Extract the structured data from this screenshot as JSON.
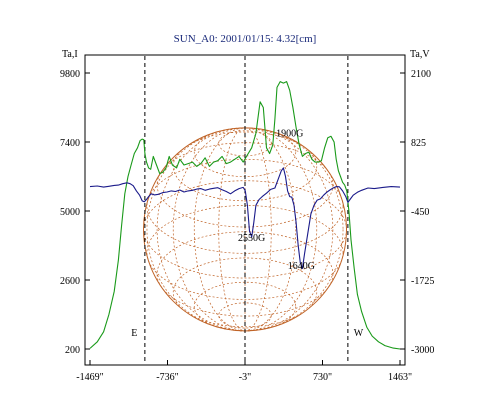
{
  "chart_data": {
    "type": "line",
    "title": "SUN_A0: 2001/01/15: 4.32[cm]",
    "ylabel_left": "Ta,I",
    "ylabel_right": "Ta,V",
    "xlim": [
      -1469,
      1463
    ],
    "ylim_left": [
      200,
      9800
    ],
    "ylim_right": [
      -3000,
      2100
    ],
    "x_ticks": [
      "-1469\"",
      "-736\"",
      "-3\"",
      "730\"",
      "1463\""
    ],
    "x_tick_values": [
      -1469,
      -736,
      -3,
      730,
      1463
    ],
    "y_left_ticks": [
      "9800",
      "7400",
      "5000",
      "2600",
      "200"
    ],
    "y_left_tick_values": [
      9800,
      7400,
      5000,
      2600,
      200
    ],
    "y_right_ticks": [
      "2100",
      "825",
      "-450",
      "-1725",
      "-3000"
    ],
    "y_right_tick_values": [
      2100,
      825,
      -450,
      -1725,
      -3000
    ],
    "vertical_lines": [
      -950,
      -3,
      970
    ],
    "limb_labels": [
      {
        "text": "E",
        "x": -1050,
        "y_left": 650
      },
      {
        "text": "W",
        "x": 1070,
        "y_left": 650
      }
    ],
    "annotations": [
      {
        "text": "1900G",
        "x": 420,
        "y_left": 7600
      },
      {
        "text": "2550G",
        "x": 60,
        "y_left": 3960
      },
      {
        "text": "1640G",
        "x": 530,
        "y_left": 2990
      }
    ],
    "disk": {
      "center_x": -3,
      "radius": 960,
      "center_y_left": 4360
    },
    "grid": false,
    "colors": {
      "stokes_i": "#1a9a1a",
      "stokes_v": "#1a1a8a",
      "disk": "#c06428",
      "title": "#1a2a7a"
    },
    "series": [
      {
        "axis": "left",
        "color": "#1a9a1a",
        "x": [
          -1469,
          -1400,
          -1340,
          -1290,
          -1240,
          -1200,
          -1170,
          -1140,
          -1110,
          -1080,
          -1050,
          -1020,
          -995,
          -975,
          -960,
          -950,
          -935,
          -915,
          -895,
          -870,
          -840,
          -810,
          -780,
          -750,
          -720,
          -690,
          -650,
          -620,
          -580,
          -540,
          -500,
          -460,
          -420,
          -380,
          -340,
          -300,
          -260,
          -220,
          -180,
          -140,
          -100,
          -60,
          -20,
          20,
          60,
          100,
          140,
          170,
          200,
          230,
          260,
          280,
          300,
          330,
          360,
          390,
          420,
          450,
          480,
          510,
          540,
          570,
          600,
          630,
          660,
          690,
          720,
          750,
          780,
          810,
          840,
          860,
          880,
          900,
          920,
          940,
          960,
          980,
          1000,
          1030,
          1060,
          1100,
          1150,
          1200,
          1260,
          1320,
          1400,
          1463
        ],
        "y": [
          220,
          450,
          800,
          1400,
          2200,
          3300,
          4500,
          5600,
          6200,
          6600,
          7000,
          7200,
          7450,
          7500,
          7480,
          7000,
          6700,
          6500,
          6450,
          6900,
          6600,
          6300,
          6350,
          6500,
          6900,
          6600,
          6500,
          6800,
          6600,
          6650,
          6700,
          6550,
          6650,
          6850,
          6550,
          6700,
          6750,
          6900,
          6650,
          6700,
          6800,
          6900,
          6700,
          6950,
          7200,
          7700,
          8800,
          8600,
          7200,
          7000,
          7300,
          8200,
          9300,
          9500,
          9450,
          9500,
          9200,
          8600,
          7900,
          7300,
          6900,
          7000,
          7050,
          6800,
          6700,
          6700,
          6750,
          7200,
          7550,
          7600,
          7400,
          6800,
          6400,
          6200,
          6000,
          5900,
          5700,
          5000,
          4000,
          3000,
          2100,
          1500,
          950,
          650,
          450,
          320,
          230,
          200
        ]
      },
      {
        "axis": "left",
        "color": "#1a1a8a",
        "x": [
          -1469,
          -1400,
          -1340,
          -1290,
          -1240,
          -1200,
          -1160,
          -1120,
          -1090,
          -1060,
          -1030,
          -1000,
          -975,
          -955,
          -935,
          -915,
          -890,
          -860,
          -820,
          -780,
          -740,
          -700,
          -660,
          -620,
          -580,
          -540,
          -500,
          -460,
          -420,
          -380,
          -340,
          -300,
          -260,
          -220,
          -180,
          -140,
          -100,
          -60,
          -20,
          0,
          20,
          40,
          60,
          80,
          100,
          130,
          160,
          200,
          240,
          280,
          310,
          340,
          360,
          380,
          400,
          420,
          440,
          460,
          480,
          500,
          520,
          540,
          560,
          590,
          620,
          650,
          680,
          710,
          740,
          770,
          800,
          830,
          860,
          890,
          920,
          950,
          970,
          990,
          1020,
          1060,
          1100,
          1160,
          1220,
          1300,
          1380,
          1463
        ],
        "y": [
          5850,
          5870,
          5830,
          5860,
          5890,
          5900,
          5950,
          5980,
          5950,
          5880,
          5700,
          5550,
          5350,
          5320,
          5400,
          5500,
          5600,
          5560,
          5580,
          5640,
          5660,
          5700,
          5680,
          5730,
          5660,
          5700,
          5720,
          5760,
          5780,
          5720,
          5760,
          5790,
          5810,
          5740,
          5680,
          5600,
          5700,
          5780,
          5820,
          5700,
          5200,
          4300,
          4100,
          4600,
          5200,
          5400,
          5500,
          5620,
          5750,
          5800,
          6100,
          6400,
          6500,
          6200,
          5700,
          5500,
          5480,
          5200,
          4600,
          3800,
          3200,
          3000,
          3500,
          4200,
          4900,
          5200,
          5380,
          5420,
          5550,
          5650,
          5730,
          5800,
          5850,
          5840,
          5700,
          5500,
          5300,
          5400,
          5550,
          5650,
          5720,
          5800,
          5780,
          5820,
          5850,
          5830
        ]
      }
    ]
  }
}
